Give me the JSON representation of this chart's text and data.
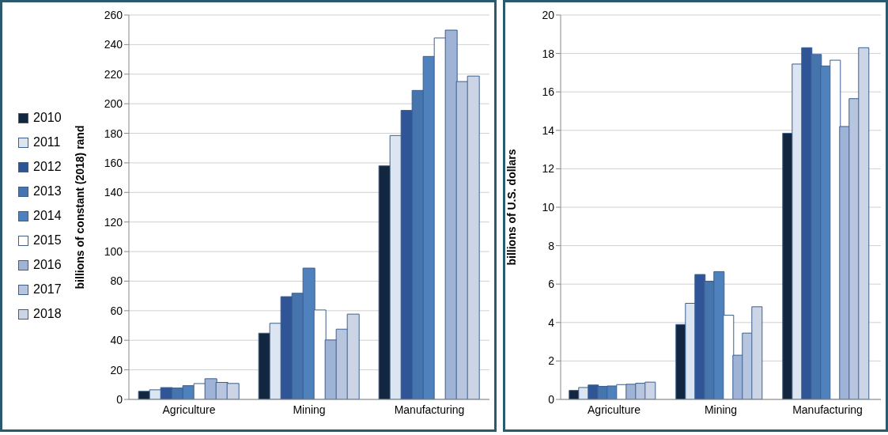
{
  "chart_data": [
    {
      "type": "bar",
      "categories": [
        "Agriculture",
        "Mining",
        "Manufacturing"
      ],
      "ylabel": "billions of constant (2018) rand",
      "ylim": [
        0,
        260
      ],
      "yticks": [
        0,
        20,
        40,
        60,
        80,
        100,
        120,
        140,
        160,
        180,
        200,
        220,
        240,
        260
      ],
      "grid": "y",
      "legend": "left",
      "series": [
        {
          "name": "2010",
          "color": "#12263f",
          "values": [
            5.5,
            44.8,
            158
          ]
        },
        {
          "name": "2011",
          "color": "#dce6f2",
          "values": [
            6.5,
            51.5,
            178.5
          ]
        },
        {
          "name": "2012",
          "color": "#2f5597",
          "values": [
            8,
            69.5,
            195.5
          ]
        },
        {
          "name": "2013",
          "color": "#4674ad",
          "values": [
            7.7,
            71.8,
            209
          ]
        },
        {
          "name": "2014",
          "color": "#4f81bd",
          "values": [
            9.3,
            88.8,
            232
          ]
        },
        {
          "name": "2015",
          "color": "#ffffff",
          "values": [
            10.7,
            60.5,
            244.5
          ]
        },
        {
          "name": "2016",
          "color": "#9fb3d6",
          "values": [
            14,
            40.2,
            249.8
          ]
        },
        {
          "name": "2017",
          "color": "#b7c5de",
          "values": [
            11.5,
            47.5,
            215
          ]
        },
        {
          "name": "2018",
          "color": "#cbd5e6",
          "values": [
            10.8,
            57.7,
            218.7
          ]
        }
      ]
    },
    {
      "type": "bar",
      "categories": [
        "Agriculture",
        "Mining",
        "Manufacturing"
      ],
      "ylabel": "billions of U.S. dollars",
      "ylim": [
        0,
        20
      ],
      "yticks": [
        0,
        2,
        4,
        6,
        8,
        10,
        12,
        14,
        16,
        18,
        20
      ],
      "grid": "y",
      "series": [
        {
          "color": "#12263f",
          "values": [
            0.47,
            3.9,
            13.85
          ]
        },
        {
          "color": "#dce6f2",
          "values": [
            0.62,
            5.0,
            17.45
          ]
        },
        {
          "color": "#2f5597",
          "values": [
            0.75,
            6.5,
            18.3
          ]
        },
        {
          "color": "#4674ad",
          "values": [
            0.68,
            6.15,
            17.95
          ]
        },
        {
          "color": "#4f81bd",
          "values": [
            0.7,
            6.65,
            17.35
          ]
        },
        {
          "color": "#ffffff",
          "values": [
            0.77,
            4.38,
            17.65
          ]
        },
        {
          "color": "#9fb3d6",
          "values": [
            0.79,
            2.3,
            14.2
          ]
        },
        {
          "color": "#b7c5de",
          "values": [
            0.84,
            3.45,
            15.65
          ]
        },
        {
          "color": "#cbd5e6",
          "values": [
            0.9,
            4.82,
            18.3
          ]
        }
      ]
    }
  ]
}
